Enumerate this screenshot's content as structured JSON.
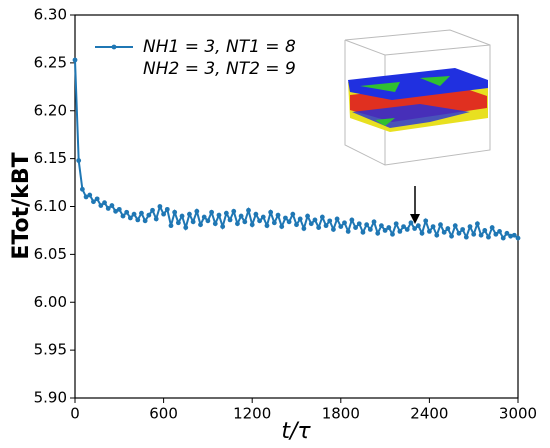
{
  "chart_data": {
    "type": "line",
    "xlabel": "t/τ",
    "ylabel": "ETot/kBT",
    "x": [
      0,
      25,
      50,
      75,
      100,
      125,
      150,
      175,
      200,
      225,
      250,
      275,
      300,
      325,
      350,
      375,
      400,
      425,
      450,
      475,
      500,
      525,
      550,
      575,
      600,
      625,
      650,
      675,
      700,
      725,
      750,
      775,
      800,
      825,
      850,
      875,
      900,
      925,
      950,
      975,
      1000,
      1025,
      1050,
      1075,
      1100,
      1125,
      1150,
      1175,
      1200,
      1225,
      1250,
      1275,
      1300,
      1325,
      1350,
      1375,
      1400,
      1425,
      1450,
      1475,
      1500,
      1525,
      1550,
      1575,
      1600,
      1625,
      1650,
      1675,
      1700,
      1725,
      1750,
      1775,
      1800,
      1825,
      1850,
      1875,
      1900,
      1925,
      1950,
      1975,
      2000,
      2025,
      2050,
      2075,
      2100,
      2125,
      2150,
      2175,
      2200,
      2225,
      2250,
      2275,
      2300,
      2325,
      2350,
      2375,
      2400,
      2425,
      2450,
      2475,
      2500,
      2525,
      2550,
      2575,
      2600,
      2625,
      2650,
      2675,
      2700,
      2725,
      2750,
      2775,
      2800,
      2825,
      2850,
      2875,
      2900,
      2925,
      2950,
      2975,
      3000
    ],
    "series": [
      {
        "name": "NH1 = 3, NT1 = 8",
        "name_line2": "NH2 = 3, NT2 = 9",
        "color": "#1f77b4",
        "values": [
          6.253,
          6.148,
          6.118,
          6.11,
          6.112,
          6.105,
          6.108,
          6.101,
          6.104,
          6.098,
          6.101,
          6.095,
          6.097,
          6.09,
          6.094,
          6.088,
          6.092,
          6.086,
          6.093,
          6.085,
          6.091,
          6.096,
          6.087,
          6.1,
          6.092,
          6.097,
          6.08,
          6.094,
          6.083,
          6.09,
          6.078,
          6.092,
          6.084,
          6.095,
          6.081,
          6.089,
          6.085,
          6.094,
          6.082,
          6.091,
          6.079,
          6.093,
          6.086,
          6.095,
          6.082,
          6.09,
          6.084,
          6.096,
          6.081,
          6.092,
          6.085,
          6.089,
          6.08,
          6.094,
          6.083,
          6.091,
          6.079,
          6.088,
          6.084,
          6.092,
          6.081,
          6.087,
          6.077,
          6.09,
          6.082,
          6.086,
          6.078,
          6.089,
          6.08,
          6.085,
          6.076,
          6.087,
          6.079,
          6.083,
          6.074,
          6.086,
          6.078,
          6.082,
          6.073,
          6.081,
          6.076,
          6.084,
          6.072,
          6.08,
          6.075,
          6.078,
          6.071,
          6.082,
          6.074,
          6.079,
          6.076,
          6.083,
          6.077,
          6.08,
          6.072,
          6.085,
          6.074,
          6.079,
          6.07,
          6.081,
          6.073,
          6.077,
          6.069,
          6.08,
          6.072,
          6.076,
          6.068,
          6.079,
          6.071,
          6.082,
          6.07,
          6.075,
          6.068,
          6.078,
          6.071,
          6.074,
          6.067,
          6.072,
          6.069,
          6.07,
          6.067
        ]
      }
    ],
    "xlim": [
      0,
      3000
    ],
    "xticks": [
      0,
      600,
      1200,
      1800,
      2400,
      3000
    ],
    "ylim": [
      5.9,
      6.3
    ],
    "yticks": [
      {
        "value": 5.9,
        "label": "5.90"
      },
      {
        "value": 5.95,
        "label": "5.95"
      },
      {
        "value": 6.0,
        "label": "6.00"
      },
      {
        "value": 6.05,
        "label": "6.05"
      },
      {
        "value": 6.1,
        "label": "6.10"
      },
      {
        "value": 6.15,
        "label": "6.15"
      },
      {
        "value": 6.2,
        "label": "6.20"
      },
      {
        "value": 6.25,
        "label": "6.25"
      },
      {
        "value": 6.3,
        "label": "6.30"
      }
    ],
    "grid": false,
    "legend": "upper left"
  }
}
